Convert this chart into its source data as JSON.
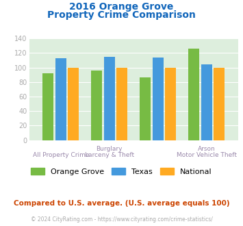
{
  "title_line1": "2016 Orange Grove",
  "title_line2": "Property Crime Comparison",
  "x_labels_top": [
    "",
    "Burglary",
    "",
    "Arson"
  ],
  "x_labels_bottom": [
    "All Property Crime",
    "Larceny & Theft",
    "",
    "Motor Vehicle Theft"
  ],
  "orange_grove": [
    92,
    96,
    86,
    126
  ],
  "texas": [
    113,
    115,
    114,
    104
  ],
  "national": [
    100,
    100,
    100,
    100
  ],
  "color_orange_grove": "#77bb44",
  "color_texas": "#4499dd",
  "color_national": "#ffaa22",
  "title_color": "#1166bb",
  "xlabel_top_color": "#9988aa",
  "xlabel_bot_color": "#9988aa",
  "ylabel_color": "#aaaaaa",
  "plot_bg": "#ddeedd",
  "grid_color": "#ffffff",
  "ylim": [
    0,
    140
  ],
  "yticks": [
    0,
    20,
    40,
    60,
    80,
    100,
    120,
    140
  ],
  "legend_labels": [
    "Orange Grove",
    "Texas",
    "National"
  ],
  "footnote1": "Compared to U.S. average. (U.S. average equals 100)",
  "footnote2": "© 2024 CityRating.com - https://www.cityrating.com/crime-statistics/",
  "footnote1_color": "#cc4400",
  "footnote2_color": "#aaaaaa"
}
